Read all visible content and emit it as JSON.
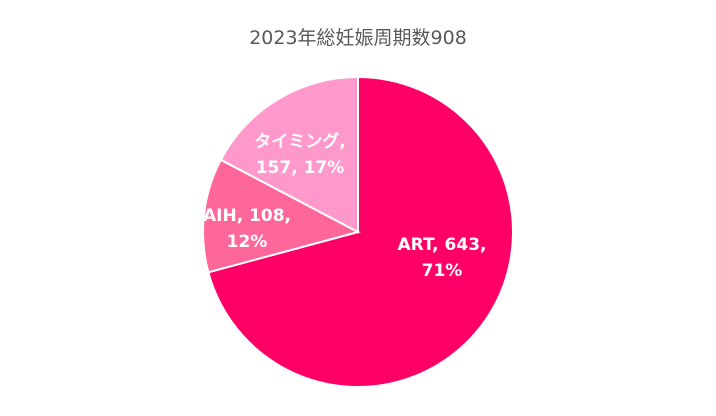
{
  "chart_data": {
    "type": "pie",
    "title": "2023年総妊娠周期数908",
    "slices": [
      {
        "name": "ART",
        "value": 643,
        "percent": "71%",
        "label_line1": "ART, 643,",
        "label_line2": "71%",
        "color": "#FF0066"
      },
      {
        "name": "AIH",
        "value": 108,
        "percent": "12%",
        "label_line1": "AIH, 108,",
        "label_line2": "12%",
        "color": "#FF6699"
      },
      {
        "name": "タイミング",
        "value": 157,
        "percent": "17%",
        "label_line1": "タイミング,",
        "label_line2": "157, 17%",
        "color": "#FF99CC"
      }
    ],
    "legend": "none"
  }
}
